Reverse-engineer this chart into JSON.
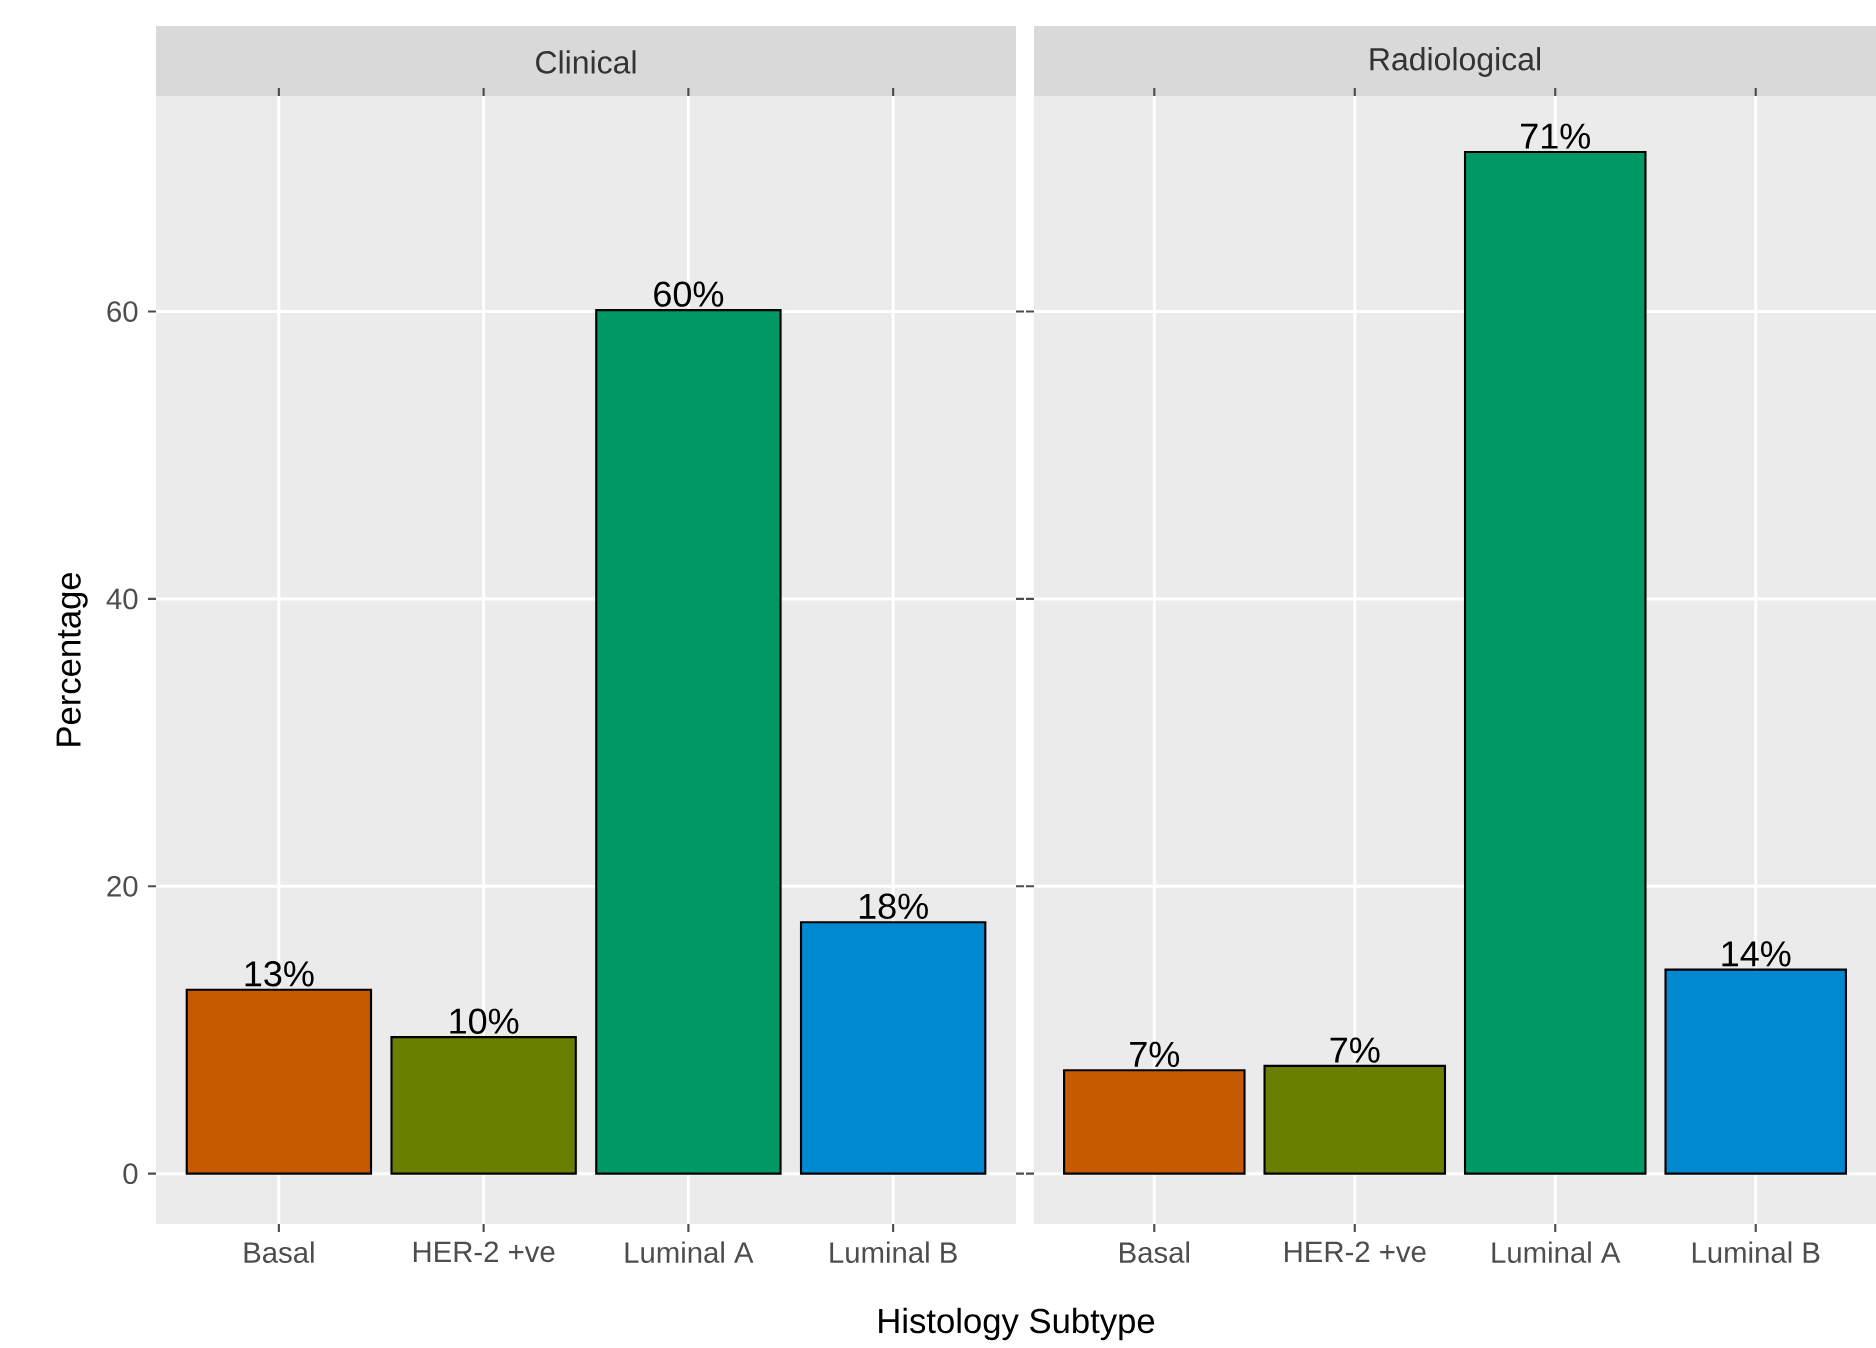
{
  "chart_data": [
    {
      "type": "bar",
      "title": "Clinical",
      "xlabel": "Histology Subtype",
      "ylabel": "Percentage",
      "categories": [
        "Basal",
        "HER-2 +ve",
        "Luminal A",
        "Luminal B"
      ],
      "values": [
        12.8,
        9.5,
        60.1,
        17.5
      ],
      "colors": [
        "#c55a00",
        "#687f00",
        "#009965",
        "#0088d1"
      ],
      "value_labels": [
        "13%",
        "10%",
        "60%",
        "18%"
      ],
      "ylim": [
        -3.5,
        75
      ],
      "yticks": [
        0,
        20,
        40,
        60
      ],
      "grid": true
    },
    {
      "type": "bar",
      "title": "Radiological",
      "categories": [
        "Basal",
        "HER-2 +ve",
        "Luminal A",
        "Luminal B"
      ],
      "values": [
        7.2,
        7.5,
        71.1,
        14.2
      ],
      "colors": [
        "#c55a00",
        "#687f00",
        "#009965",
        "#0088d1"
      ],
      "value_labels": [
        "7%",
        "7%",
        "71%",
        "14%"
      ],
      "ylim": [
        -3.5,
        75
      ],
      "yticks": [
        0,
        20,
        40,
        60
      ],
      "grid": true,
      "tick_labels": "x"
    }
  ]
}
